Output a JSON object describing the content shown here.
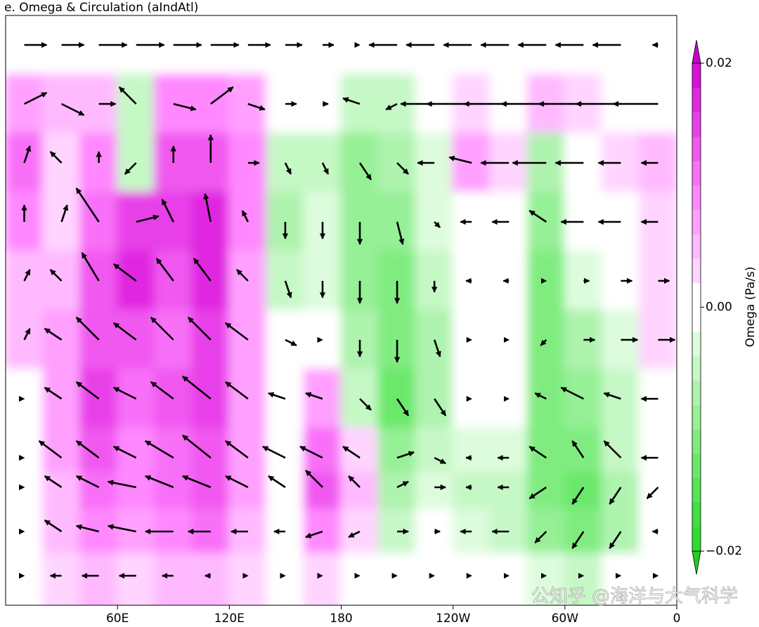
{
  "chart_data": {
    "type": "contour",
    "title": "e. Omega & Circulation (aIndAtl)",
    "x": [
      10,
      30,
      50,
      70,
      90,
      110,
      130,
      150,
      170,
      190,
      210,
      230,
      250,
      270,
      290,
      310,
      330,
      350
    ],
    "y": [
      100,
      200,
      300,
      400,
      500,
      600,
      700,
      800,
      850,
      925,
      1000
    ],
    "xlim": [
      0,
      360
    ],
    "ylim": [
      1050,
      50
    ],
    "xticks": [
      {
        "value": 60,
        "label": "60E"
      },
      {
        "value": 120,
        "label": "120E"
      },
      180,
      {
        "value": 240,
        "label": "120W"
      },
      {
        "value": 300,
        "label": "60W"
      },
      {
        "value": 360,
        "label": "0"
      }
    ],
    "omega": [
      [
        0,
        0,
        0,
        0,
        0,
        0,
        0,
        0,
        0,
        0,
        0,
        0,
        0,
        0,
        0,
        0,
        0,
        0
      ],
      [
        0.006,
        0.004,
        0.004,
        -0.006,
        0.008,
        0.008,
        0.006,
        0,
        -0.002,
        -0.006,
        -0.006,
        -0.002,
        0.002,
        0,
        0.004,
        0.002,
        0,
        0
      ],
      [
        0.01,
        0.002,
        0.008,
        -0.006,
        0.012,
        0.012,
        0.008,
        -0.006,
        -0.006,
        -0.01,
        -0.008,
        -0.004,
        0.006,
        0.002,
        -0.008,
        0,
        0.002,
        0.004
      ],
      [
        0.008,
        0.002,
        0.01,
        0.014,
        0.014,
        0.016,
        0.008,
        -0.008,
        -0.004,
        -0.01,
        -0.01,
        -0.004,
        0,
        0,
        -0.01,
        -0.002,
        0,
        0.002
      ],
      [
        0.004,
        0.004,
        0.012,
        0.016,
        0.012,
        0.016,
        0.006,
        -0.006,
        -0.004,
        -0.01,
        -0.012,
        -0.006,
        0,
        0,
        -0.012,
        -0.004,
        0,
        0.002
      ],
      [
        0.004,
        0.006,
        0.012,
        0.012,
        0.01,
        0.014,
        0.006,
        -0.002,
        0,
        -0.008,
        -0.012,
        -0.008,
        0,
        0,
        -0.012,
        -0.008,
        -0.004,
        0.002
      ],
      [
        0,
        0.006,
        0.014,
        0.01,
        0.012,
        0.014,
        0.006,
        0,
        0.006,
        -0.006,
        -0.014,
        -0.008,
        0,
        0,
        -0.012,
        -0.01,
        -0.006,
        0
      ],
      [
        0,
        0.006,
        0.012,
        0.008,
        0.01,
        0.012,
        0.006,
        0,
        0.01,
        0.002,
        -0.01,
        -0.006,
        -0.004,
        -0.004,
        -0.012,
        -0.012,
        -0.006,
        0
      ],
      [
        0,
        0.004,
        0.01,
        0.008,
        0.01,
        0.012,
        0.006,
        0,
        0.012,
        0.004,
        -0.008,
        -0.004,
        -0.006,
        -0.006,
        -0.012,
        -0.014,
        -0.008,
        0
      ],
      [
        0,
        0.004,
        0.008,
        0.006,
        0.008,
        0.01,
        0.004,
        0,
        0.008,
        0.002,
        -0.006,
        -0.002,
        -0.004,
        -0.006,
        -0.01,
        -0.012,
        -0.008,
        0
      ],
      [
        0,
        0.002,
        0.004,
        0.002,
        0.004,
        0.004,
        0.002,
        0,
        0.002,
        0,
        -0.002,
        0,
        0,
        -0.002,
        -0.004,
        -0.006,
        -0.002,
        0
      ]
    ],
    "u": [
      [
        4,
        4,
        5,
        5,
        5,
        5,
        4,
        3,
        2,
        0,
        -5,
        -5,
        -5,
        -5,
        -5,
        -5,
        -5,
        -1
      ],
      [
        4,
        4,
        3,
        -3,
        4,
        4,
        3,
        2,
        1,
        -3,
        -2,
        -6,
        -8,
        -8,
        -8,
        -8,
        -8,
        -8
      ],
      [
        1,
        -2,
        0,
        -2,
        0,
        0,
        2,
        1,
        1,
        2,
        2,
        -3,
        -4,
        -5,
        -6,
        -5,
        -4,
        -3
      ],
      [
        0,
        1,
        -4,
        4,
        -2,
        -1,
        -1,
        0,
        0,
        0,
        1,
        1,
        -2,
        -3,
        -3,
        -4,
        -4,
        -3
      ],
      [
        1,
        -2,
        -3,
        -4,
        -3,
        -3,
        -2,
        1,
        0,
        0,
        0,
        0,
        -1,
        -1,
        0,
        1,
        2,
        2
      ],
      [
        1,
        -3,
        -4,
        -4,
        -4,
        -4,
        -4,
        2,
        0,
        0,
        0,
        1,
        0,
        0,
        -1,
        2,
        3,
        3
      ],
      [
        0,
        -3,
        -4,
        -4,
        -4,
        -5,
        -4,
        -3,
        -3,
        2,
        2,
        2,
        0,
        0,
        -2,
        -4,
        -3,
        -3
      ],
      [
        0,
        -4,
        -4,
        -4,
        -5,
        -5,
        -4,
        -4,
        -4,
        -3,
        3,
        2,
        -1,
        -2,
        -3,
        -2,
        -3,
        -3
      ],
      [
        0,
        -3,
        -4,
        -5,
        -5,
        -5,
        -4,
        -3,
        -3,
        -2,
        2,
        2,
        -1,
        -2,
        -3,
        -2,
        -2,
        -2
      ],
      [
        0,
        -3,
        -4,
        -5,
        -5,
        -4,
        -3,
        -2,
        -3,
        -2,
        2,
        1,
        -2,
        -3,
        -2,
        -2,
        -2,
        -1
      ],
      [
        0,
        -2,
        -3,
        -3,
        -2,
        -1,
        0,
        0,
        0,
        0,
        0,
        0,
        0,
        0,
        0,
        0,
        0,
        0
      ]
    ],
    "w": [
      [
        0,
        0,
        0,
        0,
        0,
        0,
        0,
        0,
        0,
        0,
        0,
        0,
        0,
        0,
        0,
        0,
        0,
        0
      ],
      [
        2,
        -2,
        0,
        3,
        -1,
        3,
        -1,
        0,
        0,
        1,
        -1,
        0,
        0,
        0,
        0,
        0,
        0,
        0
      ],
      [
        3,
        2,
        2,
        -2,
        3,
        5,
        0,
        -2,
        -2,
        -3,
        -2,
        0,
        1,
        0,
        0,
        0,
        0,
        0
      ],
      [
        3,
        3,
        6,
        1,
        4,
        5,
        2,
        -3,
        -3,
        -4,
        -4,
        -1,
        0,
        0,
        2,
        0,
        0,
        0
      ],
      [
        2,
        2,
        5,
        3,
        4,
        4,
        2,
        -3,
        -3,
        -4,
        -4,
        -2,
        0,
        0,
        0,
        0,
        0,
        0
      ],
      [
        2,
        2,
        4,
        3,
        4,
        4,
        3,
        -1,
        0,
        -3,
        -4,
        -3,
        0,
        0,
        -1,
        0,
        0,
        0
      ],
      [
        0,
        2,
        3,
        2,
        3,
        4,
        3,
        1,
        1,
        -2,
        -3,
        -3,
        0,
        0,
        1,
        2,
        1,
        0
      ],
      [
        0,
        3,
        3,
        2,
        3,
        4,
        3,
        2,
        2,
        2,
        1,
        -1,
        0,
        0,
        2,
        3,
        3,
        0
      ],
      [
        0,
        2,
        2,
        1,
        2,
        2,
        2,
        2,
        3,
        2,
        1,
        0,
        0,
        0,
        -2,
        -3,
        -3,
        -2
      ],
      [
        0,
        2,
        1,
        1,
        0,
        0,
        0,
        0,
        -1,
        -1,
        0,
        0,
        0,
        0,
        -2,
        -3,
        -3,
        0
      ],
      [
        0,
        0,
        0,
        0,
        0,
        0,
        0,
        0,
        0,
        0,
        0,
        0,
        0,
        0,
        0,
        0,
        0,
        0
      ]
    ],
    "arrow_color": "#000000",
    "levels": [
      -0.02,
      -0.018,
      -0.016,
      -0.014,
      -0.012,
      -0.01,
      -0.008,
      -0.006,
      -0.004,
      -0.002,
      0,
      0.002,
      0.004,
      0.006,
      0.008,
      0.01,
      0.012,
      0.014,
      0.016,
      0.018,
      0.02
    ],
    "colors": [
      "#2ddc2d",
      "#40e040",
      "#55e455",
      "#6ae86a",
      "#80ec80",
      "#96f096",
      "#aef3ae",
      "#c6f8c6",
      "#ddfcdd",
      "#ffffff",
      "#ffffff",
      "#ffd4ff",
      "#ffbaff",
      "#ffa0ff",
      "#ff88ff",
      "#f870f8",
      "#f058f0",
      "#e840e8",
      "#e028e0",
      "#d810d8"
    ],
    "under_color": "#22cc22",
    "over_color": "#cc00cc",
    "colorbar_label": "Omega (Pa/s)",
    "colorbar_ticks": [
      0.02,
      {
        "value": 0,
        "label": "0.00"
      },
      {
        "value": -0.02,
        "label": "−0.02"
      }
    ],
    "watermark": "公知乎 @海洋与大气科学"
  }
}
